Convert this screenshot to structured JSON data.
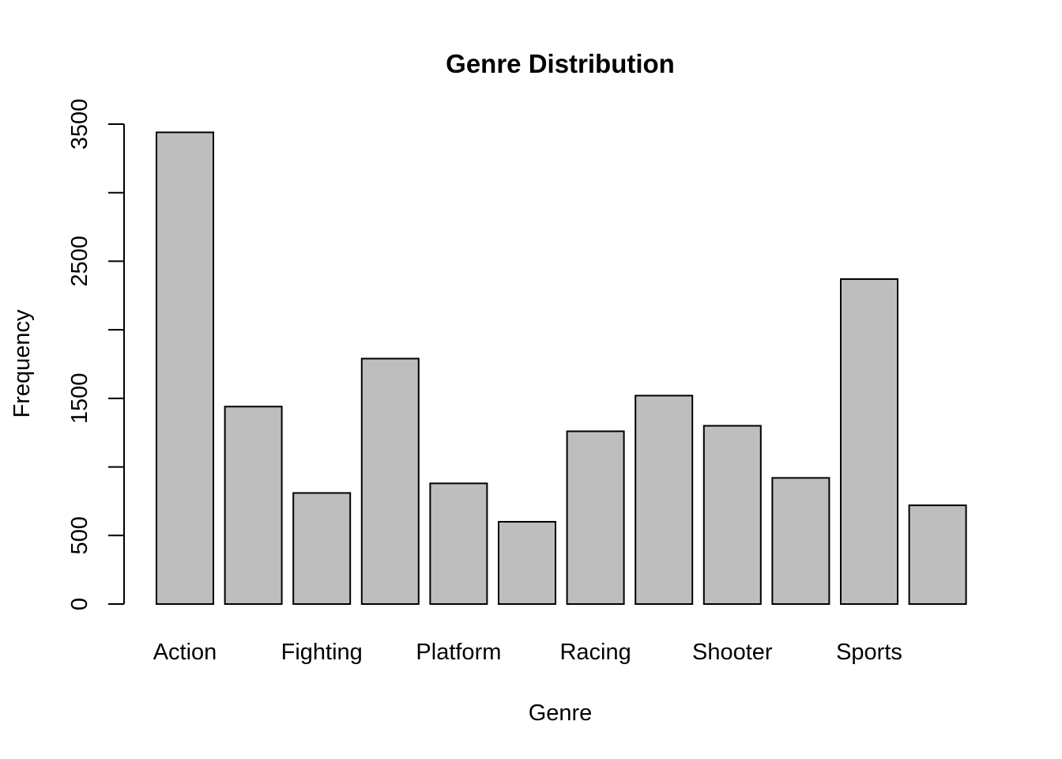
{
  "chart_data": {
    "type": "bar",
    "title": "Genre Distribution",
    "xlabel": "Genre",
    "ylabel": "Frequency",
    "categories": [
      "Action",
      "",
      "Fighting",
      "",
      "Platform",
      "",
      "Racing",
      "",
      "Shooter",
      "",
      "Sports",
      ""
    ],
    "values": [
      3440,
      1440,
      810,
      1790,
      880,
      600,
      1260,
      1520,
      1300,
      920,
      2370,
      720
    ],
    "ylim": [
      0,
      3500
    ],
    "yticks": [
      0,
      500,
      1500,
      2500,
      3500
    ],
    "yticks_unlabeled": [
      1000,
      2000,
      3000
    ],
    "bar_color": "#bebebe",
    "grid": false
  }
}
